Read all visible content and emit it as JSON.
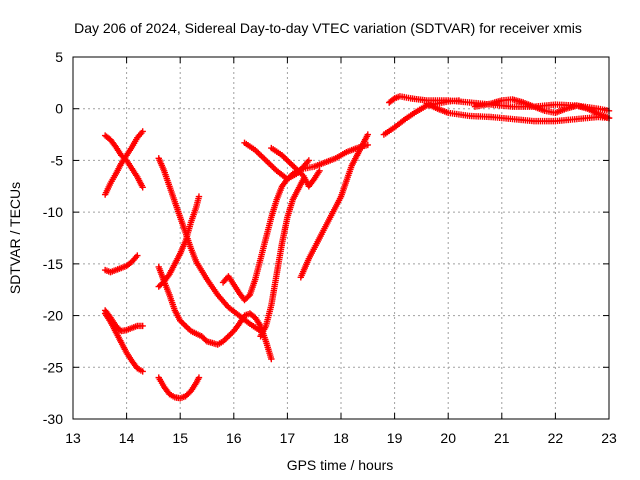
{
  "chart_data": {
    "type": "scatter",
    "title": "Day 206 of 2024, Sidereal Day-to-day VTEC variation (SDTVAR) for receiver xmis",
    "xlabel": "GPS time / hours",
    "ylabel": "SDTVAR / TECUs",
    "xlim": [
      13,
      23
    ],
    "ylim": [
      -30,
      5
    ],
    "xticks": [
      13,
      14,
      15,
      16,
      17,
      18,
      19,
      20,
      21,
      22,
      23
    ],
    "yticks": [
      -30,
      -25,
      -20,
      -15,
      -10,
      -5,
      0,
      5
    ],
    "grid": true,
    "marker": "plus",
    "color": "#ff0000",
    "series": [
      {
        "points": [
          [
            13.6,
            -8.3
          ],
          [
            13.7,
            -7.2
          ],
          [
            13.8,
            -6.3
          ],
          [
            13.9,
            -5.3
          ],
          [
            14.0,
            -4.5
          ],
          [
            14.1,
            -3.7
          ],
          [
            14.2,
            -2.8
          ],
          [
            14.3,
            -2.2
          ]
        ]
      },
      {
        "points": [
          [
            13.6,
            -2.6
          ],
          [
            13.7,
            -3.0
          ],
          [
            13.8,
            -3.7
          ],
          [
            13.9,
            -4.5
          ],
          [
            14.0,
            -5.0
          ],
          [
            14.1,
            -5.8
          ],
          [
            14.2,
            -6.6
          ],
          [
            14.3,
            -7.6
          ]
        ]
      },
      {
        "points": [
          [
            13.6,
            -15.6
          ],
          [
            13.7,
            -15.8
          ],
          [
            13.8,
            -15.6
          ],
          [
            13.9,
            -15.4
          ],
          [
            14.0,
            -15.2
          ],
          [
            14.1,
            -14.8
          ],
          [
            14.2,
            -14.2
          ]
        ]
      },
      {
        "points": [
          [
            13.6,
            -19.5
          ],
          [
            13.7,
            -20.2
          ],
          [
            13.8,
            -21.0
          ],
          [
            13.9,
            -21.5
          ],
          [
            14.0,
            -21.4
          ],
          [
            14.1,
            -21.2
          ],
          [
            14.2,
            -21.0
          ],
          [
            14.3,
            -21.0
          ]
        ]
      },
      {
        "points": [
          [
            13.6,
            -19.8
          ],
          [
            13.7,
            -20.6
          ],
          [
            13.8,
            -21.6
          ],
          [
            13.9,
            -22.6
          ],
          [
            14.0,
            -23.6
          ],
          [
            14.1,
            -24.4
          ],
          [
            14.2,
            -25.1
          ],
          [
            14.3,
            -25.4
          ]
        ]
      },
      {
        "points": [
          [
            14.6,
            -26.0
          ],
          [
            14.7,
            -26.9
          ],
          [
            14.8,
            -27.6
          ],
          [
            14.9,
            -27.9
          ],
          [
            15.0,
            -28.0
          ],
          [
            15.1,
            -27.8
          ],
          [
            15.2,
            -27.3
          ],
          [
            15.3,
            -26.5
          ],
          [
            15.35,
            -26.0
          ]
        ]
      },
      {
        "points": [
          [
            14.6,
            -17.2
          ],
          [
            14.7,
            -16.7
          ],
          [
            14.8,
            -16.0
          ],
          [
            14.9,
            -15.0
          ],
          [
            15.0,
            -14.0
          ],
          [
            15.1,
            -12.8
          ],
          [
            15.2,
            -11.0
          ],
          [
            15.3,
            -9.5
          ],
          [
            15.35,
            -8.5
          ]
        ]
      },
      {
        "points": [
          [
            14.6,
            -15.3
          ],
          [
            14.7,
            -16.7
          ],
          [
            14.8,
            -18.0
          ],
          [
            14.9,
            -19.5
          ],
          [
            15.0,
            -20.5
          ],
          [
            15.2,
            -21.5
          ],
          [
            15.4,
            -22.0
          ],
          [
            15.5,
            -22.5
          ],
          [
            15.7,
            -22.8
          ],
          [
            15.8,
            -22.5
          ],
          [
            16.0,
            -21.5
          ],
          [
            16.1,
            -20.8
          ],
          [
            16.2,
            -20.0
          ],
          [
            16.3,
            -19.8
          ],
          [
            16.4,
            -20.2
          ],
          [
            16.5,
            -21.0
          ],
          [
            16.6,
            -22.5
          ],
          [
            16.7,
            -24.2
          ]
        ]
      },
      {
        "points": [
          [
            14.6,
            -4.8
          ],
          [
            14.7,
            -6.0
          ],
          [
            14.8,
            -7.5
          ],
          [
            14.9,
            -9.0
          ],
          [
            15.0,
            -10.5
          ],
          [
            15.1,
            -12.0
          ],
          [
            15.2,
            -13.5
          ],
          [
            15.3,
            -14.8
          ],
          [
            15.5,
            -16.5
          ],
          [
            15.7,
            -18.0
          ],
          [
            15.9,
            -19.2
          ],
          [
            16.1,
            -20.0
          ],
          [
            16.3,
            -20.8
          ],
          [
            16.5,
            -21.5
          ]
        ]
      },
      {
        "points": [
          [
            15.8,
            -16.8
          ],
          [
            15.9,
            -16.2
          ],
          [
            16.0,
            -17.0
          ],
          [
            16.1,
            -17.8
          ],
          [
            16.2,
            -18.5
          ],
          [
            16.3,
            -18.0
          ],
          [
            16.4,
            -16.5
          ],
          [
            16.5,
            -14.5
          ],
          [
            16.6,
            -12.5
          ],
          [
            16.7,
            -10.5
          ],
          [
            16.8,
            -8.8
          ],
          [
            16.9,
            -7.5
          ],
          [
            17.0,
            -6.8
          ],
          [
            17.1,
            -6.3
          ],
          [
            17.2,
            -6.0
          ],
          [
            17.3,
            -5.8
          ],
          [
            17.5,
            -5.6
          ],
          [
            17.7,
            -5.2
          ],
          [
            17.9,
            -4.8
          ],
          [
            18.1,
            -4.2
          ],
          [
            18.3,
            -3.8
          ],
          [
            18.5,
            -3.5
          ]
        ]
      },
      {
        "points": [
          [
            16.2,
            -3.3
          ],
          [
            16.4,
            -4.0
          ],
          [
            16.6,
            -5.0
          ],
          [
            16.8,
            -6.0
          ],
          [
            17.0,
            -6.8
          ],
          [
            17.2,
            -6.2
          ],
          [
            17.4,
            -5.0
          ]
        ]
      },
      {
        "points": [
          [
            16.5,
            -22.0
          ],
          [
            16.6,
            -21.0
          ],
          [
            16.7,
            -19.0
          ],
          [
            16.8,
            -16.0
          ],
          [
            16.9,
            -13.0
          ],
          [
            17.0,
            -10.5
          ],
          [
            17.1,
            -8.8
          ],
          [
            17.2,
            -7.8
          ],
          [
            17.3,
            -6.8
          ]
        ]
      },
      {
        "points": [
          [
            16.7,
            -3.8
          ],
          [
            16.9,
            -4.5
          ],
          [
            17.1,
            -5.5
          ],
          [
            17.3,
            -6.5
          ],
          [
            17.4,
            -7.5
          ],
          [
            17.5,
            -6.8
          ],
          [
            17.6,
            -6.0
          ]
        ]
      },
      {
        "points": [
          [
            17.25,
            -16.3
          ],
          [
            17.4,
            -14.5
          ],
          [
            17.6,
            -12.5
          ],
          [
            17.8,
            -10.5
          ],
          [
            18.0,
            -8.5
          ],
          [
            18.1,
            -7.0
          ],
          [
            18.2,
            -5.5
          ],
          [
            18.3,
            -4.5
          ],
          [
            18.4,
            -3.5
          ],
          [
            18.5,
            -2.5
          ]
        ]
      },
      {
        "points": [
          [
            18.8,
            -2.5
          ],
          [
            19.0,
            -1.8
          ],
          [
            19.2,
            -1.0
          ],
          [
            19.4,
            -0.3
          ],
          [
            19.6,
            0.3
          ],
          [
            19.8,
            0.5
          ],
          [
            20.0,
            0.7
          ],
          [
            20.2,
            0.8
          ]
        ]
      },
      {
        "points": [
          [
            18.9,
            0.6
          ],
          [
            19.0,
            1.0
          ],
          [
            19.1,
            1.2
          ],
          [
            19.3,
            1.0
          ],
          [
            19.6,
            0.8
          ],
          [
            20.0,
            0.8
          ],
          [
            20.4,
            0.6
          ],
          [
            20.8,
            0.4
          ],
          [
            21.2,
            0.2
          ],
          [
            21.6,
            0.2
          ],
          [
            22.0,
            0.4
          ],
          [
            22.4,
            0.3
          ],
          [
            22.8,
            0.0
          ],
          [
            23.0,
            -0.2
          ]
        ]
      },
      {
        "points": [
          [
            19.6,
            0.5
          ],
          [
            19.8,
            0.0
          ],
          [
            20.0,
            -0.4
          ],
          [
            20.4,
            -0.7
          ],
          [
            20.8,
            -0.8
          ],
          [
            21.2,
            -1.0
          ],
          [
            21.6,
            -1.2
          ],
          [
            22.0,
            -1.2
          ],
          [
            22.4,
            -1.0
          ],
          [
            22.8,
            -0.8
          ],
          [
            23.0,
            -0.9
          ]
        ]
      },
      {
        "points": [
          [
            20.5,
            0.2
          ],
          [
            20.8,
            0.5
          ],
          [
            21.0,
            0.8
          ],
          [
            21.2,
            0.9
          ],
          [
            21.4,
            0.6
          ],
          [
            21.6,
            0.2
          ],
          [
            21.8,
            -0.2
          ],
          [
            22.0,
            -0.4
          ],
          [
            22.2,
            0.0
          ],
          [
            22.4,
            0.3
          ],
          [
            22.6,
            0.0
          ],
          [
            22.8,
            -0.5
          ],
          [
            23.0,
            -0.9
          ]
        ]
      }
    ]
  }
}
